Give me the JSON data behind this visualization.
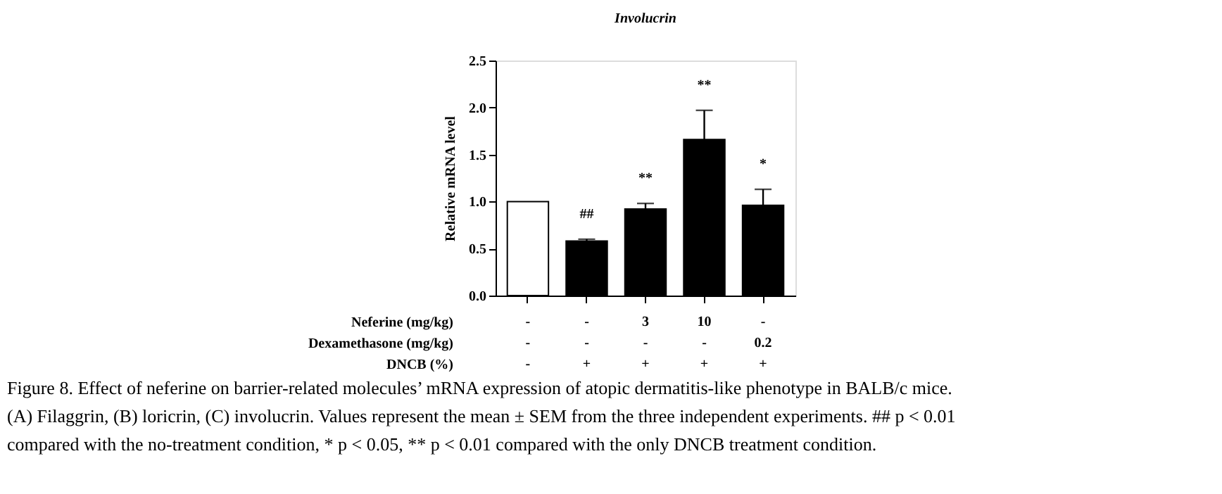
{
  "chart_data": {
    "type": "bar",
    "title": "Involucrin",
    "ylabel": "Relative mRNA level",
    "categories": [
      "-\n-\n-",
      "-\n-\n+",
      "3\n-\n+",
      "10\n-\n+",
      "-\n0.2\n+"
    ],
    "values": [
      1.0,
      0.58,
      0.92,
      1.66,
      0.96
    ],
    "colors": [
      "#ffffff",
      "#000000",
      "#000000",
      "#000000",
      "#000000"
    ],
    "errors": [
      null,
      [
        0.58,
        0.6
      ],
      [
        0.92,
        0.98
      ],
      [
        1.66,
        1.97
      ],
      [
        0.96,
        1.13
      ]
    ],
    "ylim": [
      0,
      2.5
    ],
    "yticks": [
      {
        "value": 0,
        "label": "0.0"
      },
      0.5,
      {
        "value": 1,
        "label": "1.0"
      },
      1.5,
      {
        "value": 2,
        "label": "2.0"
      },
      2.5
    ],
    "annotations": [
      "##",
      "**",
      "**",
      "*",
      "Neferine (mg/kg)",
      "Dexamethasone (mg/kg)",
      "DNCB (%)",
      "Figure 8. Effect of neferine on barrier-related molecules’ mRNA expression of atopic dermatitis-like phenotype in BALB/c mice. (A) Filaggrin, (B) loricrin, (C) involucrin. Values represent the mean ± SEM from the three independent experiments. ## p < 0.01 compared with the no-treatment condition, * p < 0.05, ** p < 0.01 compared with the only DNCB treatment condition."
    ]
  }
}
